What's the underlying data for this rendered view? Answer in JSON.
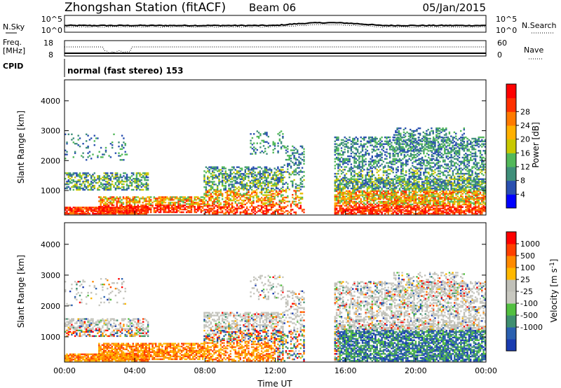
{
  "header": {
    "title": "Zhongshan Station (fitACF)",
    "beam": "Beam 06",
    "date": "05/Jan/2015"
  },
  "noise_panel": {
    "left_label": "N.Sky",
    "right_label": "N.Search",
    "ticks_top": "10^5",
    "ticks_bottom": "10^0"
  },
  "freq_panel": {
    "left_label_1": "Freq.",
    "left_label_2": "[MHz]",
    "left_tick_top": "18",
    "left_tick_bottom": "8",
    "right_label": "Nave",
    "right_tick_top": "60",
    "right_tick_bottom": "0"
  },
  "cpid": {
    "label": "CPID",
    "value": "normal (fast stereo) 153"
  },
  "colors": {
    "power_scale": [
      "#0000ff",
      "#2a50b0",
      "#3f8f7a",
      "#52b85a",
      "#c8c800",
      "#ffb000",
      "#ff7a00",
      "#ff3000",
      "#ff0000"
    ],
    "velocity_scale": [
      "#ff0000",
      "#ff4000",
      "#ff8a00",
      "#ffb800",
      "#c0c0b8",
      "#c8c8c0",
      "#52c040",
      "#3f8f70",
      "#2a60b0",
      "#1a3cb0"
    ]
  },
  "chart_data": [
    {
      "type": "heatmap",
      "name": "power",
      "xlabel": "",
      "ylabel": "Slant Range [km]",
      "x_ticks": [
        "00:00",
        "04:00",
        "08:00",
        "12:00",
        "16:00",
        "20:00",
        "00:00"
      ],
      "y_ticks": [
        1000,
        2000,
        3000,
        4000
      ],
      "ylim": [
        180,
        4700
      ],
      "colorbar_label": "Power [dB]",
      "colorbar_ticks": [
        4,
        8,
        12,
        16,
        20,
        24,
        28
      ],
      "colorbar_range": [
        0,
        32
      ]
    },
    {
      "type": "heatmap",
      "name": "velocity",
      "xlabel": "Time UT",
      "ylabel": "Slant Range [km]",
      "x_ticks": [
        "00:00",
        "04:00",
        "08:00",
        "12:00",
        "16:00",
        "20:00",
        "00:00"
      ],
      "y_ticks": [
        1000,
        2000,
        3000,
        4000
      ],
      "ylim": [
        180,
        4700
      ],
      "colorbar_label": "Velocity [m s^-1]",
      "colorbar_ticks": [
        1000,
        500,
        100,
        25,
        -25,
        -100,
        -500,
        -1000
      ]
    }
  ]
}
